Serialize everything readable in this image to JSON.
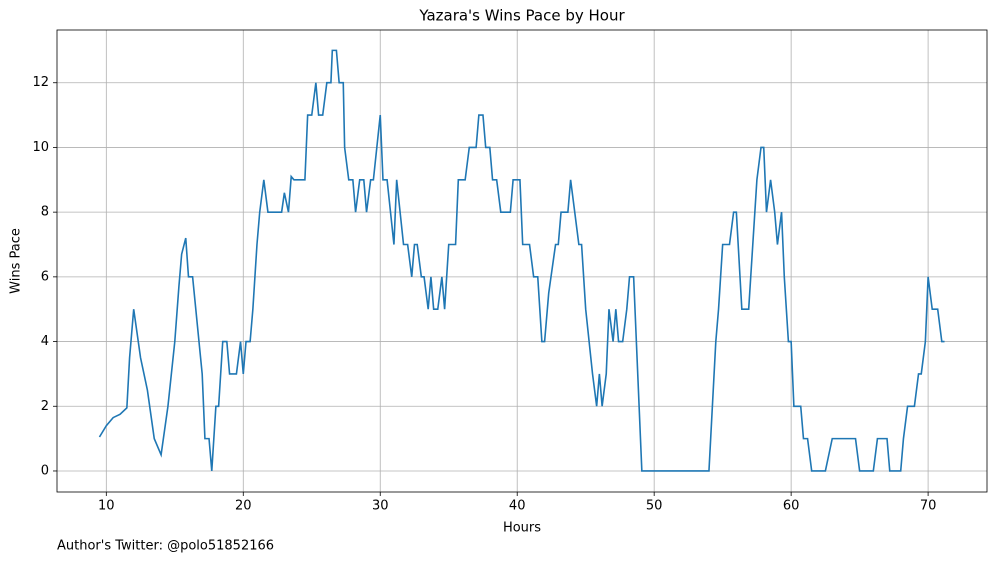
{
  "chart_data": {
    "type": "line",
    "title": "Yazara's Wins Pace by Hour",
    "xlabel": "Hours",
    "ylabel": "Wins Pace",
    "footnote": "Author's Twitter: @polo51852166",
    "x": [
      9.5,
      10,
      10.5,
      11.0,
      11.5,
      11.7,
      12.0,
      12.5,
      13.0,
      13.5,
      14.0,
      14.5,
      15.0,
      15.3,
      15.5,
      15.8,
      16.0,
      16.3,
      17.0,
      17.2,
      17.5,
      17.7,
      18.0,
      18.2,
      18.5,
      18.8,
      19.0,
      19.5,
      19.8,
      20.0,
      20.2,
      20.5,
      20.7,
      21.0,
      21.2,
      21.5,
      21.8,
      22.8,
      23.0,
      23.3,
      23.5,
      23.7,
      24.5,
      24.7,
      25.0,
      25.3,
      25.5,
      25.8,
      26.1,
      26.4,
      26.5,
      26.8,
      27.0,
      27.3,
      27.4,
      27.7,
      28.0,
      28.2,
      28.5,
      28.8,
      29.0,
      29.3,
      29.5,
      30.0,
      30.2,
      30.5,
      31.0,
      31.2,
      31.7,
      32.0,
      32.3,
      32.5,
      32.7,
      33.0,
      33.2,
      33.5,
      33.7,
      33.9,
      34.2,
      34.5,
      34.7,
      35.0,
      35.5,
      35.7,
      36.2,
      36.5,
      37.0,
      37.2,
      37.5,
      37.7,
      38.0,
      38.2,
      38.5,
      38.8,
      39.5,
      39.7,
      40.2,
      40.4,
      40.9,
      41.2,
      41.5,
      41.8,
      42.0,
      42.3,
      42.8,
      43.0,
      43.2,
      43.7,
      43.9,
      44.2,
      44.5,
      44.7,
      45.0,
      45.5,
      45.8,
      46.0,
      46.2,
      46.5,
      46.7,
      47.0,
      47.2,
      47.4,
      47.7,
      48.0,
      48.2,
      48.5,
      49.1,
      54.0,
      54.5,
      54.7,
      55.0,
      55.5,
      55.8,
      56.0,
      56.4,
      56.9,
      57.2,
      57.5,
      57.8,
      58.0,
      58.2,
      58.5,
      58.8,
      59.0,
      59.3,
      59.5,
      59.8,
      60.0,
      60.2,
      60.7,
      60.9,
      61.2,
      61.5,
      62.5,
      63.0,
      64.7,
      65.0,
      66.0,
      66.3,
      67.0,
      67.2,
      68.0,
      68.2,
      68.5,
      69.0,
      69.3,
      69.5,
      69.8,
      70.0,
      70.3,
      70.7,
      71.0,
      71.2
    ],
    "series": [
      {
        "name": "Wins Pace",
        "color": "#1f77b4",
        "values": [
          1.05,
          1.4,
          1.65,
          1.75,
          1.95,
          3.5,
          5,
          3.5,
          2.5,
          1,
          0.5,
          2,
          4,
          5.7,
          6.7,
          7.2,
          6,
          6,
          3,
          1,
          1,
          0,
          2,
          2,
          4,
          4,
          3,
          3,
          4,
          3,
          4,
          4,
          5,
          7,
          8,
          9,
          8,
          8,
          8.6,
          8,
          9.1,
          9,
          9,
          11,
          11,
          12,
          11,
          11,
          12,
          12,
          13,
          13,
          12,
          12,
          10,
          9,
          9,
          8,
          9,
          9,
          8,
          9,
          9,
          11,
          9,
          9,
          7,
          9,
          7,
          7,
          6,
          7,
          7,
          6,
          6,
          5,
          6,
          5,
          5,
          6,
          5,
          7,
          7,
          9,
          9,
          10,
          10,
          11,
          11,
          10,
          10,
          9,
          9,
          8,
          8,
          9,
          9,
          7,
          7,
          6,
          6,
          4,
          4,
          5.5,
          7,
          7,
          8,
          8,
          9,
          8,
          7,
          7,
          5,
          3,
          2,
          3,
          2,
          3,
          5,
          4,
          5,
          4,
          4,
          5,
          6,
          6,
          0,
          0,
          4,
          5,
          7,
          7,
          8,
          8,
          5,
          5,
          7,
          9,
          10,
          10,
          8,
          9,
          8,
          7,
          8,
          6,
          4,
          4,
          2,
          2,
          1,
          1,
          0,
          0,
          1,
          1,
          0,
          0,
          1,
          1,
          0,
          0,
          1,
          2,
          2,
          3,
          3,
          4,
          6,
          5,
          5,
          4,
          4
        ]
      }
    ],
    "xlim": [
      6.4,
      74.3
    ],
    "ylim": [
      -0.65,
      13.63
    ],
    "xticks": [
      10,
      20,
      30,
      40,
      50,
      60,
      70
    ],
    "yticks": [
      0,
      2,
      4,
      6,
      8,
      10,
      12
    ],
    "grid": true
  }
}
